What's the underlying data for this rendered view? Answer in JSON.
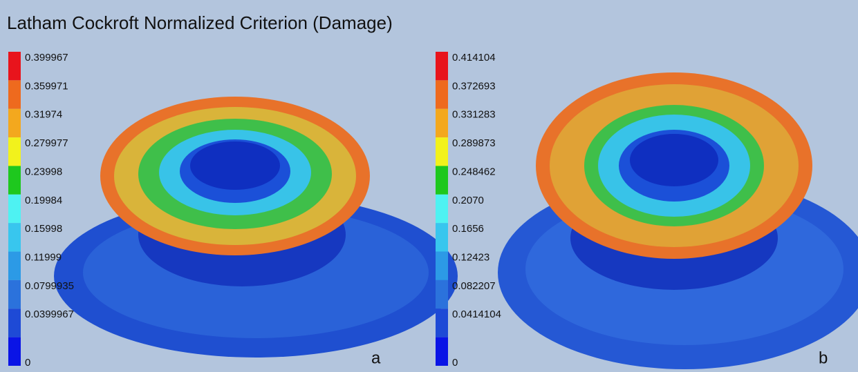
{
  "title": "Latham Cockroft Normalized Criterion (Damage)",
  "panels": [
    {
      "label": "a",
      "scale": [
        "0.399967",
        "0.359971",
        "0.31974",
        "0.279977",
        "0.23998",
        "0.19984",
        "0.15998",
        "0.11999",
        "0.0799935",
        "0.0399967",
        "0"
      ]
    },
    {
      "label": "b",
      "scale": [
        "0.414104",
        "0.372693",
        "0.331283",
        "0.289873",
        "0.248462",
        "0.2070",
        "0.1656",
        "0.12423",
        "0.082207",
        "0.0414104",
        "0"
      ]
    }
  ]
}
